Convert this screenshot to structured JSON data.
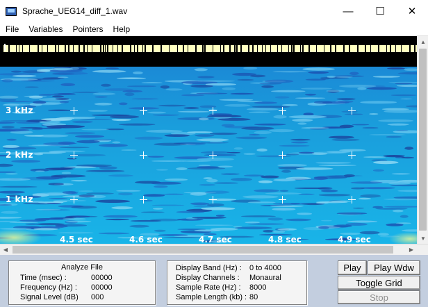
{
  "window": {
    "title": "Sprache_UEG14_diff_1.wav",
    "controls": {
      "minimize": "—",
      "maximize": "☐",
      "close": "✕"
    }
  },
  "menu": [
    "File",
    "Variables",
    "Pointers",
    "Help"
  ],
  "spectrogram": {
    "freq_labels": [
      "3  kHz",
      "2  kHz",
      "1  kHz"
    ],
    "time_labels": [
      "4.5 sec",
      "4.6 sec",
      "4.7 sec",
      "4.8 sec",
      "4.9 sec"
    ],
    "colors": {
      "background": "#1aa6e0",
      "dark_band": "#1b4fb0",
      "highlight": "#8ed8f4",
      "signal_bar": "#ffffc0"
    }
  },
  "analyze": {
    "title": "Analyze File",
    "fields": [
      {
        "label": "Time (msec) :",
        "value": "00000"
      },
      {
        "label": "Frequency (Hz) :",
        "value": "00000"
      },
      {
        "label": "Signal Level (dB)",
        "value": "000"
      }
    ]
  },
  "display": {
    "fields": [
      {
        "label": "Display Band (Hz) :",
        "value": "0 to 4000"
      },
      {
        "label": "Display Channels :",
        "value": "Monaural"
      },
      {
        "label": "Sample Rate (Hz) :",
        "value": "8000"
      },
      {
        "label": "Sample Length (kb) :",
        "value": "80"
      }
    ]
  },
  "buttons": {
    "play": "Play",
    "play_window": "Play Wdw",
    "toggle_grid": "Toggle Grid",
    "stop": "Stop"
  },
  "scroll": {
    "up": "▲",
    "down": "▼",
    "left": "◀",
    "right": "▶"
  }
}
